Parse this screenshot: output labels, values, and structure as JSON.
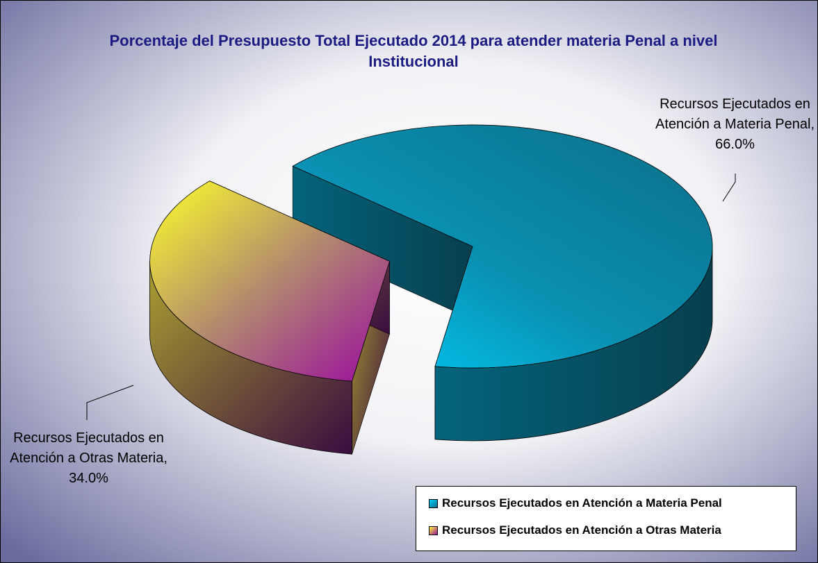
{
  "chart_data": {
    "type": "pie",
    "title": "Porcentaje del Presupuesto Total Ejecutado 2014 para atender materia Penal a nivel Institucional",
    "categories": [
      "Recursos Ejecutados en Atención a Materia Penal",
      "Recursos Ejecutados en Atención a Otras Materia"
    ],
    "values": [
      66.0,
      34.0
    ],
    "value_labels": [
      "66.0%",
      "34.0%"
    ],
    "colors": [
      "#0a86a6",
      "#c9b93c"
    ],
    "legend": "lower right"
  }
}
